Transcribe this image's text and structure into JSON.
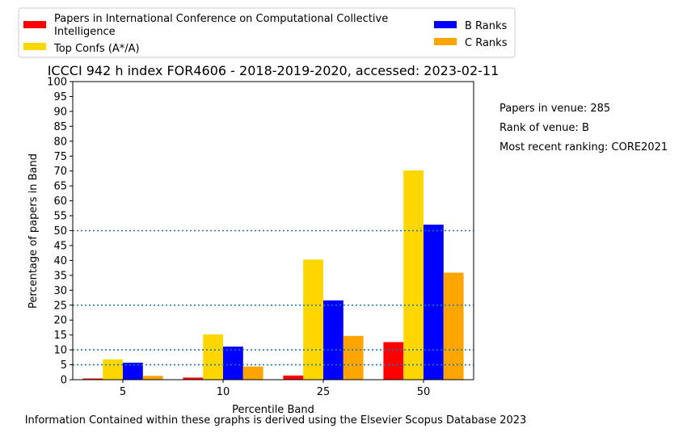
{
  "chart_data": {
    "type": "bar",
    "title": "ICCCI 942 h index FOR4606 - 2018-2019-2020, accessed: 2023-02-11",
    "xlabel": "Percentile Band",
    "ylabel": "Percentage of papers in Band",
    "categories": [
      "5",
      "10",
      "25",
      "50"
    ],
    "ylim": [
      0,
      100
    ],
    "yticks": [
      0,
      5,
      10,
      15,
      20,
      25,
      30,
      35,
      40,
      45,
      50,
      55,
      60,
      65,
      70,
      75,
      80,
      85,
      90,
      95,
      100
    ],
    "series": [
      {
        "name": "Papers in International Conference on Computational Collective Intelligence",
        "color": "#ff0000",
        "values": [
          0.4,
          0.7,
          1.4,
          12.6
        ]
      },
      {
        "name": "Top Confs (A*/A)",
        "color": "#ffd700",
        "values": [
          6.8,
          15.2,
          40.3,
          70.2
        ]
      },
      {
        "name": "B Ranks",
        "color": "#0000ff",
        "values": [
          5.7,
          11.1,
          26.6,
          52.0
        ]
      },
      {
        "name": "C Ranks",
        "color": "#ffa500",
        "values": [
          1.3,
          4.4,
          14.7,
          35.9
        ]
      }
    ],
    "reference_lines": [
      5,
      10,
      25,
      50
    ],
    "reference_line_color": "#1f77b4",
    "legend_placement": "top"
  },
  "legend": {
    "items": [
      {
        "label": "Papers in International Conference on Computational Collective\nIntelligence",
        "color": "#ff0000"
      },
      {
        "label": "Top Confs (A*/A)",
        "color": "#ffd700"
      },
      {
        "label": "B Ranks",
        "color": "#0000ff"
      },
      {
        "label": "C Ranks",
        "color": "#ffa500"
      }
    ]
  },
  "side_info": {
    "papers": "Papers in venue: 285",
    "rank": "Rank of venue: B",
    "recent": "Most recent ranking: CORE2021"
  },
  "footer": "Information Contained within these graphs is derived using the Elsevier Scopus Database 2023"
}
